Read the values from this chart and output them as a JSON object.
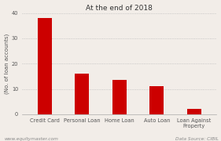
{
  "title": "At the end of 2018",
  "categories": [
    "Credit Card",
    "Personal Loan",
    "Home Loan",
    "Auto Loan",
    "Loan Against\nProperty"
  ],
  "values": [
    38,
    16,
    13.5,
    11,
    2
  ],
  "bar_color": "#cc0000",
  "ylabel": "(No. of loan accounts)",
  "ylim": [
    0,
    40
  ],
  "yticks": [
    0,
    10,
    20,
    30,
    40
  ],
  "background_color": "#f2ede8",
  "footer_left": "www.equitymaster.com",
  "footer_right": "Data Source: CIBIL",
  "title_fontsize": 6.5,
  "axis_fontsize": 5.0,
  "tick_fontsize": 4.8,
  "footer_fontsize": 4.2,
  "bar_width": 0.38
}
